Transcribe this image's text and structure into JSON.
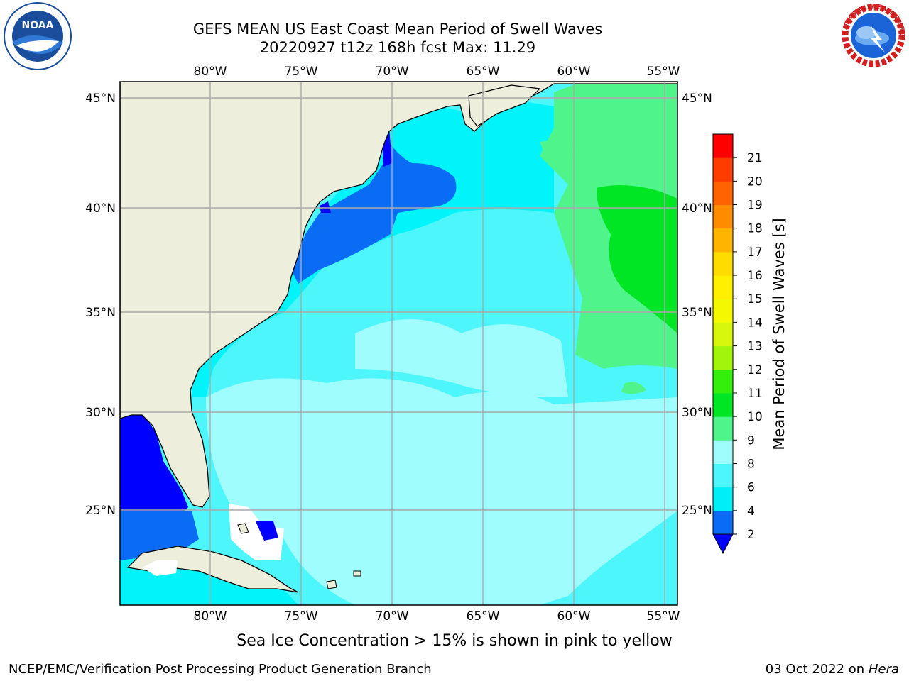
{
  "title_line1": "GEFS MEAN US East Coast Mean Period of Swell Waves",
  "title_line2": "20220927 t12z 168h fcst   Max: 11.29",
  "lon_labels": [
    "80°W",
    "75°W",
    "70°W",
    "65°W",
    "60°W",
    "55°W"
  ],
  "lat_labels": [
    "45°N",
    "40°N",
    "35°N",
    "30°N",
    "25°N"
  ],
  "colorbar": {
    "label": "Mean Period of Swell Waves [s]",
    "ticks": [
      "2",
      "4",
      "6",
      "8",
      "9",
      "10",
      "11",
      "12",
      "13",
      "14",
      "15",
      "16",
      "17",
      "18",
      "19",
      "20",
      "21"
    ],
    "colors": [
      "#0a6cf5",
      "#00eef8",
      "#4df6fa",
      "#9ffdfd",
      "#4ff48a",
      "#00e625",
      "#34ee0c",
      "#a2f50a",
      "#d7f80a",
      "#f4f800",
      "#fff000",
      "#ffdc00",
      "#ffb400",
      "#ff8c00",
      "#ff6400",
      "#ff3c00",
      "#ff0000"
    ],
    "under_color": "#0000ff"
  },
  "sea_ice_note": "Sea Ice Concentration > 15% is shown in pink to yellow",
  "footer_left": "NCEP/EMC/Verification Post Processing Product Generation Branch",
  "footer_date": "03 Oct 2022 on ",
  "footer_host": "Hera",
  "logo_noaa": "NOAA",
  "logo_nws": "NATIONAL WEATHER SERVICE",
  "colors": {
    "land": "#eeeedc",
    "coast": "#000000",
    "grid": "#aaaaaa",
    "deep_blue": "#0000ff",
    "mid_blue": "#0a6cf5",
    "cyan": "#00f4fa",
    "light_cyan": "#4df6fa",
    "pale_cyan": "#9ffdfd",
    "green": "#4ff48a",
    "bright_green": "#00e625"
  }
}
